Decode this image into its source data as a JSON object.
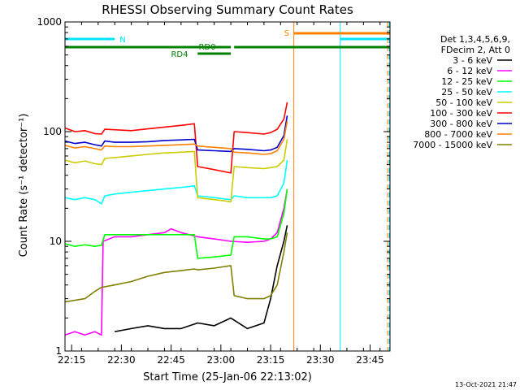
{
  "chart_data": {
    "type": "line",
    "title": "RHESSI Observing Summary Count Rates",
    "xlabel": "Start Time (25-Jan-06 22:13:02)",
    "ylabel": "Count Rate (s⁻¹ detector⁻¹)",
    "y_scale": "log",
    "ylim": [
      1,
      1000
    ],
    "xlim_minutes": [
      0,
      98
    ],
    "x_ticks": [
      "22:15",
      "22:30",
      "22:45",
      "23:00",
      "23:15",
      "23:30",
      "23:45"
    ],
    "x_tick_minutes": [
      2,
      17,
      32,
      47,
      62,
      77,
      92
    ],
    "y_ticks": [
      "1",
      "10",
      "100",
      "1000"
    ],
    "y_tick_values": [
      1,
      10,
      100,
      1000
    ],
    "legend_header": [
      "Det 1,3,4,5,6,9,",
      "FDecim 2, Att 0"
    ],
    "footer_date": "13-Oct-2021 21:47",
    "annotations": {
      "night_label": "N",
      "saa_label": "S",
      "rd0_label": "RD0",
      "rd4_label": "RD4"
    },
    "night_intervals_minutes": [
      [
        0,
        15
      ],
      [
        83,
        98
      ]
    ],
    "saa_interval_minutes": [
      69,
      98
    ],
    "rd0_intervals_minutes": [
      [
        0,
        50
      ],
      [
        51,
        98
      ]
    ],
    "rd4_interval_minutes": [
      40,
      50
    ],
    "series": [
      {
        "name": "3 - 6 keV",
        "color": "#000000",
        "x": [
          15,
          20,
          25,
          30,
          35,
          40,
          45,
          50,
          55,
          60,
          62,
          64,
          66,
          67
        ],
        "y": [
          1.5,
          1.6,
          1.7,
          1.6,
          1.6,
          1.8,
          1.7,
          2.0,
          1.6,
          1.8,
          3.0,
          6.0,
          10.0,
          14.0
        ]
      },
      {
        "name": "6 - 12 keV",
        "color": "#ff00ff",
        "x": [
          0,
          3,
          6,
          9,
          11,
          11.5,
          15,
          20,
          25,
          30,
          32,
          35,
          40,
          45,
          50,
          55,
          60,
          62,
          64,
          66,
          67
        ],
        "y": [
          1.4,
          1.5,
          1.4,
          1.5,
          1.4,
          10.0,
          11.0,
          11.0,
          11.5,
          12.0,
          13.0,
          12.0,
          11.0,
          10.5,
          10.0,
          9.8,
          10.0,
          10.5,
          12.0,
          20.0,
          30.0
        ]
      },
      {
        "name": "12 - 25 keV",
        "color": "#00ff00",
        "x": [
          0,
          3,
          6,
          9,
          11,
          12,
          15,
          20,
          25,
          30,
          35,
          39,
          40,
          45,
          50,
          51,
          55,
          60,
          62,
          64,
          66,
          67
        ],
        "y": [
          9.5,
          9.0,
          9.3,
          9.0,
          9.2,
          11.5,
          11.5,
          11.5,
          11.5,
          11.5,
          11.5,
          11.5,
          7.0,
          7.2,
          7.5,
          11.0,
          11.0,
          10.5,
          10.5,
          11.0,
          18.0,
          30.0
        ]
      },
      {
        "name": "25 - 50 keV",
        "color": "#00ffff",
        "x": [
          0,
          3,
          6,
          9,
          11,
          12,
          15,
          20,
          25,
          30,
          35,
          39,
          40,
          45,
          50,
          51,
          55,
          60,
          62,
          64,
          66,
          67
        ],
        "y": [
          25,
          24,
          25,
          24,
          22,
          26,
          27,
          28,
          29,
          30,
          31,
          32,
          26,
          25,
          24,
          26,
          25,
          25,
          25,
          26,
          34,
          55
        ]
      },
      {
        "name": "50 - 100 keV",
        "color": "#cccc00",
        "x": [
          0,
          3,
          6,
          9,
          11,
          12,
          15,
          20,
          25,
          30,
          35,
          39,
          40,
          45,
          50,
          51,
          55,
          60,
          62,
          64,
          66,
          67
        ],
        "y": [
          55,
          52,
          54,
          51,
          50,
          57,
          58,
          60,
          62,
          64,
          65,
          66,
          25,
          24,
          23,
          48,
          47,
          46,
          47,
          48,
          55,
          85
        ]
      },
      {
        "name": "100 - 300 keV",
        "color": "#ff0000",
        "x": [
          0,
          3,
          6,
          9,
          11,
          12,
          15,
          20,
          25,
          30,
          35,
          39,
          40,
          45,
          50,
          51,
          55,
          60,
          62,
          64,
          66,
          67
        ],
        "y": [
          108,
          100,
          102,
          96,
          95,
          105,
          104,
          102,
          106,
          110,
          114,
          118,
          48,
          45,
          42,
          100,
          98,
          95,
          98,
          105,
          130,
          185
        ]
      },
      {
        "name": "300 - 800 keV",
        "color": "#0000cc",
        "x": [
          0,
          3,
          6,
          9,
          11,
          12,
          15,
          20,
          25,
          30,
          35,
          39,
          40,
          45,
          50,
          51,
          55,
          60,
          62,
          64,
          66,
          67
        ],
        "y": [
          82,
          78,
          80,
          76,
          74,
          82,
          80,
          80,
          81,
          83,
          84,
          85,
          68,
          67,
          66,
          70,
          69,
          67,
          68,
          72,
          92,
          140
        ]
      },
      {
        "name": "800 - 7000 keV",
        "color": "#ff8000",
        "x": [
          0,
          3,
          6,
          9,
          11,
          12,
          15,
          20,
          25,
          30,
          35,
          39,
          40,
          45,
          50,
          51,
          55,
          60,
          62,
          64,
          66,
          67
        ],
        "y": [
          75,
          71,
          73,
          70,
          68,
          74,
          73,
          73,
          74,
          75,
          76,
          77,
          74,
          72,
          70,
          65,
          64,
          62,
          63,
          67,
          85,
          125
        ]
      },
      {
        "name": "7000 - 15000 keV",
        "color": "#808000",
        "x": [
          0,
          3,
          6,
          9,
          11,
          15,
          20,
          25,
          30,
          35,
          39,
          40,
          45,
          50,
          51,
          55,
          60,
          62,
          64,
          66,
          67
        ],
        "y": [
          2.8,
          2.9,
          3.0,
          3.5,
          3.8,
          4.0,
          4.3,
          4.8,
          5.2,
          5.4,
          5.6,
          5.5,
          5.7,
          6.0,
          3.2,
          3.0,
          3.0,
          3.2,
          4.0,
          8.0,
          12.0
        ]
      }
    ]
  }
}
